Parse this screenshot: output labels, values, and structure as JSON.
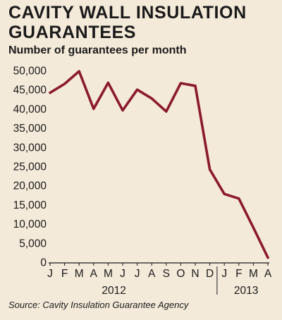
{
  "colors": {
    "background": "#f4ead9",
    "accent": "#8b1a2e",
    "text": "#1a1a1a",
    "gridline": "#b9b0a3"
  },
  "source": "Source: Cavity Insulation Guarantee Agency",
  "chart_data": {
    "type": "line",
    "title": [
      "CAVITY WALL INSULATION",
      "GUARANTEES"
    ],
    "subtitle": "Number of guarantees per month",
    "xlabel": "",
    "ylabel": "",
    "categories": [
      "J",
      "F",
      "M",
      "A",
      "M",
      "J",
      "J",
      "A",
      "S",
      "O",
      "N",
      "D",
      "J",
      "F",
      "M",
      "A"
    ],
    "year_labels": [
      {
        "label": "2012",
        "start_index": 0,
        "end_index": 11
      },
      {
        "label": "2013",
        "start_index": 12,
        "end_index": 15
      }
    ],
    "y_ticks": [
      "0",
      "5,000",
      "10,000",
      "15,000",
      "20,000",
      "25,000",
      "30,000",
      "35,000",
      "40,000",
      "45,000",
      "50,000"
    ],
    "ylim": [
      0,
      50000
    ],
    "grid": false,
    "legend": "none",
    "series": [
      {
        "values": [
          44200,
          46500,
          49800,
          40000,
          46800,
          39600,
          45000,
          42700,
          39300,
          46700,
          46000,
          24200,
          17800,
          16600,
          9000,
          1200
        ],
        "color": "#8b1a2e"
      }
    ]
  }
}
